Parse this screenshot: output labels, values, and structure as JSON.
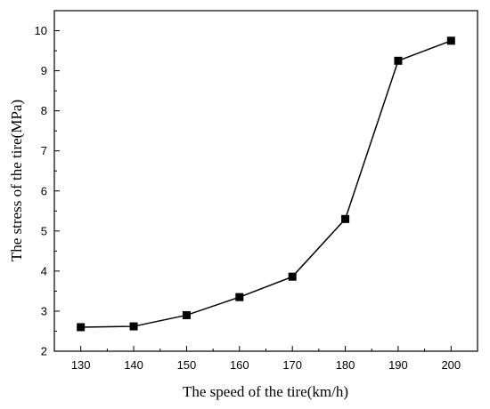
{
  "chart_data": {
    "type": "line",
    "title": "",
    "xlabel": "The speed of the tire(km/h)",
    "ylabel": "The stress of the tire(MPa)",
    "xlim": [
      125,
      205
    ],
    "ylim": [
      2,
      10.5
    ],
    "xticks": [
      130,
      140,
      150,
      160,
      170,
      180,
      190,
      200
    ],
    "yticks": [
      2,
      3,
      4,
      5,
      6,
      7,
      8,
      9,
      10
    ],
    "grid": false,
    "legend": "none",
    "marker": "square",
    "series": [
      {
        "x": [
          130,
          140,
          150,
          160,
          170,
          180,
          190,
          200
        ],
        "values": [
          2.6,
          2.62,
          2.9,
          3.35,
          3.86,
          5.3,
          9.25,
          9.75
        ],
        "color": "#000000"
      }
    ]
  }
}
